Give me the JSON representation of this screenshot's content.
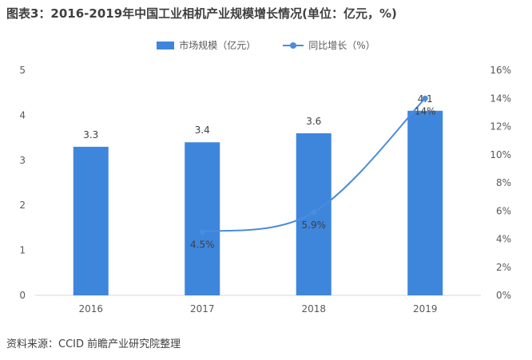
{
  "title": "图表3：2016-2019年中国工业相机产业规模增长情况(单位：亿元，%)",
  "source": "资料来源：CCID 前瞻产业研究院整理",
  "colors": {
    "bar": "#3E86DC",
    "line": "#4A8CDD",
    "axis": "#D9D9D9"
  },
  "chart_data": {
    "type": "bar",
    "categories": [
      "2016",
      "2017",
      "2018",
      "2019"
    ],
    "series": [
      {
        "name": "市场规模（亿元）",
        "type": "bar",
        "axis": "left",
        "values": [
          3.3,
          3.4,
          3.6,
          4.1
        ],
        "labels": [
          "3.3",
          "3.4",
          "3.6",
          "4.1"
        ]
      },
      {
        "name": "同比增长（%）",
        "type": "line",
        "axis": "right",
        "values": [
          null,
          4.5,
          5.9,
          14
        ],
        "labels": [
          "",
          "4.5%",
          "5.9%",
          "14%"
        ]
      }
    ],
    "ylim_left": [
      0,
      5
    ],
    "yticks_left": [
      "0",
      "1",
      "2",
      "3",
      "4",
      "5"
    ],
    "ylim_right": [
      0,
      16
    ],
    "yticks_right": [
      "0%",
      "2%",
      "4%",
      "6%",
      "8%",
      "10%",
      "12%",
      "14%",
      "16%"
    ],
    "grid": false,
    "legend": "top-center"
  }
}
